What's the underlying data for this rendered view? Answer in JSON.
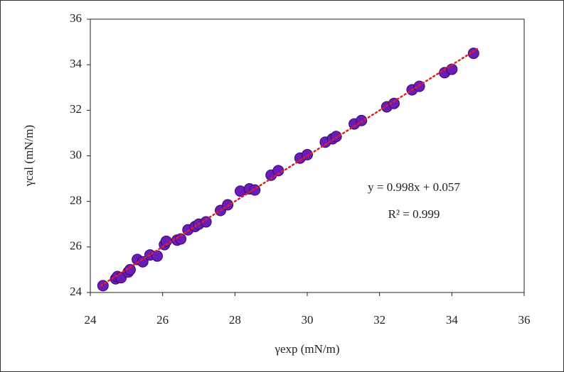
{
  "chart_data": {
    "type": "scatter",
    "x_label": "γexp (mN/m)",
    "y_label": "γcal (mN/m)",
    "annotations": [
      "y = 0.998x + 0.057",
      "R² = 0.999"
    ],
    "xlim": [
      24,
      36
    ],
    "ylim": [
      24,
      36
    ],
    "xticks": [
      24,
      26,
      28,
      30,
      32,
      34,
      36
    ],
    "yticks": [
      24,
      26,
      28,
      30,
      32,
      34,
      36
    ],
    "grid": false,
    "color": "#6a1bb8",
    "trendline": {
      "color": "#e02020",
      "x": [
        24.3,
        34.7
      ],
      "y": [
        24.31,
        34.69
      ]
    },
    "x": [
      24.35,
      24.7,
      24.75,
      24.85,
      25.05,
      25.1,
      25.3,
      25.45,
      25.65,
      25.85,
      26.05,
      26.1,
      26.4,
      26.5,
      26.7,
      26.9,
      27.0,
      27.2,
      27.6,
      27.8,
      28.15,
      28.4,
      28.55,
      29.0,
      29.2,
      29.8,
      30.0,
      30.5,
      30.7,
      30.8,
      31.3,
      31.5,
      32.2,
      32.4,
      32.9,
      33.1,
      33.8,
      34.0,
      34.6
    ],
    "y": [
      24.3,
      24.6,
      24.7,
      24.65,
      24.9,
      25.0,
      25.45,
      25.35,
      25.65,
      25.6,
      26.1,
      26.25,
      26.3,
      26.35,
      26.75,
      26.9,
      27.0,
      27.1,
      27.6,
      27.85,
      28.45,
      28.55,
      28.5,
      29.15,
      29.35,
      29.9,
      30.05,
      30.6,
      30.75,
      30.85,
      31.4,
      31.55,
      32.15,
      32.3,
      32.9,
      33.05,
      33.65,
      33.8,
      34.5
    ]
  }
}
